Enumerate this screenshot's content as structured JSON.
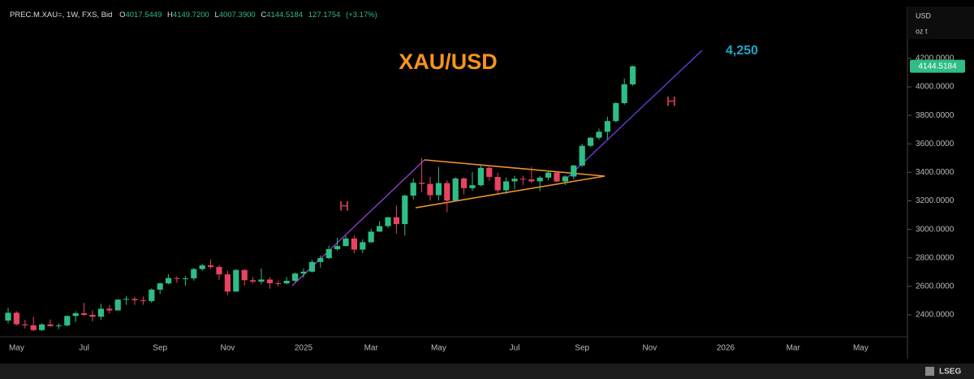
{
  "header": {
    "symbol": "PREC.M.XAU=, 1W, FXS, Bid",
    "open_key": "O",
    "open": "4017.5449",
    "high_key": "H",
    "high": "4149.7200",
    "low_key": "L",
    "low": "4007.3900",
    "close_key": "C",
    "close": "4144.5184",
    "change": "127.1754",
    "change_pct": "(+3.17%)"
  },
  "chart_data": {
    "type": "candlestick",
    "title": "XAU/USD",
    "annotations": [
      "4,250",
      "H",
      "H"
    ],
    "axis_unit": "USD",
    "axis_subunit": "oz t",
    "last_price_label": "4144.5184",
    "up_color": "#2ebd85",
    "down_color": "#e8435f",
    "ylim": [
      2246,
      4564
    ],
    "yticks": [
      {
        "value": 2400,
        "label": "2400.0000"
      },
      {
        "value": 2600,
        "label": "2600.0000"
      },
      {
        "value": 2800,
        "label": "2800.0000"
      },
      {
        "value": 3000,
        "label": "3000.0000"
      },
      {
        "value": 3200,
        "label": "3200.0000"
      },
      {
        "value": 3400,
        "label": "3400.0000"
      },
      {
        "value": 3600,
        "label": "3600.0000"
      },
      {
        "value": 3800,
        "label": "3800.0000"
      },
      {
        "value": 4000,
        "label": "4000.0000"
      },
      {
        "value": 4200,
        "label": "4200.0000"
      }
    ],
    "categories": [
      null,
      "May",
      null,
      null,
      null,
      null,
      null,
      null,
      null,
      "Jul",
      null,
      null,
      null,
      null,
      null,
      null,
      null,
      null,
      "Sep",
      null,
      null,
      null,
      null,
      null,
      null,
      null,
      "Nov",
      null,
      null,
      null,
      null,
      null,
      null,
      null,
      null,
      "2025",
      null,
      null,
      null,
      null,
      null,
      null,
      null,
      "Mar",
      null,
      null,
      null,
      null,
      null,
      null,
      null,
      "May",
      null,
      null,
      null,
      null,
      null,
      null,
      null,
      null,
      "Jul",
      null,
      null,
      null,
      null,
      null,
      null,
      null,
      "Sep",
      null,
      null,
      null,
      null,
      null,
      null,
      null,
      "Nov",
      null,
      null,
      null,
      null,
      null,
      null,
      null,
      null,
      "2026",
      null,
      null,
      null,
      null,
      null,
      null,
      null,
      "Mar",
      null,
      null,
      null,
      null,
      null,
      null,
      null,
      "May",
      null,
      null,
      null,
      null,
      null
    ],
    "series": [
      {
        "open": [
          2360,
          2415,
          2334,
          2327,
          2293,
          2333,
          2321,
          2326,
          2392,
          2411,
          2400,
          2387,
          2443,
          2431,
          2507,
          2512,
          2503,
          2497,
          2577,
          2621,
          2658,
          2653,
          2656,
          2721,
          2747,
          2736,
          2684,
          2563,
          2715,
          2643,
          2633,
          2648,
          2622,
          2621,
          2639,
          2690,
          2703,
          2771,
          2798,
          2861,
          2883,
          2936,
          2858,
          2910,
          2984,
          3023,
          3085,
          3037,
          3237,
          3327,
          3319,
          3240,
          3325,
          3202,
          3357,
          3289,
          3310,
          3432,
          3368,
          3274,
          3337,
          3355,
          3350,
          3337,
          3363,
          3398,
          3336,
          3371,
          3448,
          3586,
          3643,
          3685,
          3760,
          3886,
          4017.5449,
          null,
          null,
          null,
          null,
          null,
          null,
          null,
          null,
          null,
          null,
          null,
          null,
          null,
          null,
          null,
          null,
          null,
          null,
          null,
          null,
          null,
          null,
          null,
          null,
          null,
          null,
          null,
          null,
          null,
          null,
          null,
          null
        ],
        "high": [
          2450,
          2425,
          2365,
          2387,
          2340,
          2368,
          2340,
          2396,
          2425,
          2484,
          2432,
          2478,
          2470,
          2510,
          2531,
          2525,
          2529,
          2586,
          2626,
          2686,
          2670,
          2672,
          2730,
          2758,
          2790,
          2750,
          2710,
          2721,
          2721,
          2666,
          2726,
          2664,
          2640,
          2665,
          2697,
          2725,
          2786,
          2817,
          2886,
          2942,
          2955,
          2956,
          2930,
          3005,
          3057,
          3086,
          3168,
          3245,
          3358,
          3500,
          3368,
          3438,
          3345,
          3366,
          3365,
          3403,
          3452,
          3451,
          3398,
          3365,
          3375,
          3377,
          3439,
          3375,
          3409,
          3404,
          3379,
          3453,
          3600,
          3647,
          3707,
          3790,
          3893,
          4059,
          4149.72,
          null,
          null,
          null,
          null,
          null,
          null,
          null,
          null,
          null,
          null,
          null,
          null,
          null,
          null,
          null,
          null,
          null,
          null,
          null,
          null,
          null,
          null,
          null,
          null,
          null,
          null,
          null,
          null,
          null,
          null,
          null,
          null
        ],
        "low": [
          2340,
          2325,
          2305,
          2286,
          2286,
          2316,
          2300,
          2318,
          2350,
          2394,
          2353,
          2364,
          2410,
          2430,
          2470,
          2470,
          2471,
          2485,
          2546,
          2614,
          2625,
          2603,
          2640,
          2708,
          2722,
          2643,
          2537,
          2563,
          2605,
          2620,
          2613,
          2583,
          2600,
          2614,
          2630,
          2660,
          2697,
          2731,
          2790,
          2850,
          2880,
          2832,
          2833,
          2903,
          2982,
          3010,
          2971,
          2957,
          3210,
          3260,
          3202,
          3202,
          3120,
          3200,
          3245,
          3271,
          3301,
          3340,
          3255,
          3248,
          3282,
          3310,
          3324,
          3268,
          3345,
          3331,
          3311,
          3351,
          3436,
          3579,
          3628,
          3630,
          3750,
          3875,
          4007.39,
          null,
          null,
          null,
          null,
          null,
          null,
          null,
          null,
          null,
          null,
          null,
          null,
          null,
          null,
          null,
          null,
          null,
          null,
          null,
          null,
          null,
          null,
          null,
          null,
          null,
          null,
          null,
          null,
          null,
          null,
          null,
          null
        ],
        "close": [
          2415,
          2334,
          2327,
          2293,
          2333,
          2321,
          2326,
          2392,
          2411,
          2400,
          2387,
          2443,
          2431,
          2507,
          2512,
          2503,
          2497,
          2577,
          2621,
          2658,
          2653,
          2656,
          2721,
          2747,
          2736,
          2684,
          2563,
          2715,
          2643,
          2633,
          2648,
          2622,
          2621,
          2639,
          2690,
          2703,
          2771,
          2798,
          2861,
          2883,
          2936,
          2858,
          2910,
          2984,
          3023,
          3085,
          3037,
          3237,
          3327,
          3319,
          3240,
          3325,
          3202,
          3357,
          3289,
          3310,
          3432,
          3368,
          3274,
          3337,
          3355,
          3350,
          3337,
          3363,
          3398,
          3336,
          3371,
          3448,
          3586,
          3643,
          3685,
          3760,
          3886,
          4018,
          4144.5184,
          null,
          null,
          null,
          null,
          null,
          null,
          null,
          null,
          null,
          null,
          null,
          null,
          null,
          null,
          null,
          null,
          null,
          null,
          null,
          null,
          null,
          null,
          null,
          null,
          null,
          null,
          null,
          null,
          null,
          null,
          null,
          null
        ]
      }
    ]
  }
}
